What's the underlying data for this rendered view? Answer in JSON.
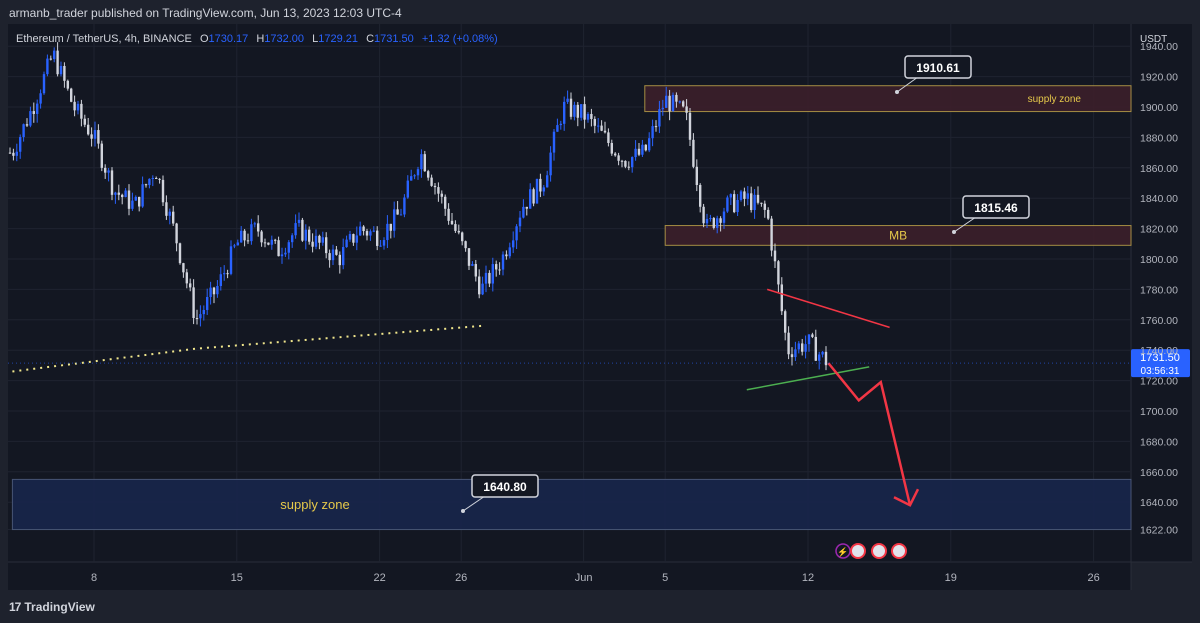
{
  "header": {
    "published_by": "armanb_trader published on TradingView.com, Jun 13, 2023 12:03 UTC-4"
  },
  "brand": {
    "logo": "17",
    "name": "TradingView"
  },
  "symbol_bar": {
    "symbol": "Ethereum / TetherUS, 4h, BINANCE",
    "o_label": "O",
    "o_value": "1730.17",
    "h_label": "H",
    "h_value": "1732.00",
    "l_label": "L",
    "l_value": "1729.21",
    "c_label": "C",
    "c_value": "1731.50",
    "change": "+1.32 (+0.08%)"
  },
  "colors": {
    "background": "#131722",
    "up_candle": "#2962ff",
    "down_candle": "#d1d4dc",
    "zone_fill": "#3c1f2a",
    "zone_border": "#b59a47",
    "demand_fill": "#18254a",
    "trend_yellow": "#f0e68c",
    "triangle_top": "#f23645",
    "triangle_bottom": "#4caf50",
    "arrow": "#f23645",
    "price_label_bg": "#2962ff"
  },
  "chart_data": {
    "type": "candlestick",
    "symbol": "ETHUSDT",
    "timeframe": "4h",
    "currency": "USDT",
    "y_range": [
      1610,
      1950
    ],
    "y_ticks": [
      1622,
      1640,
      1660,
      1680,
      1700,
      1720,
      1740,
      1760,
      1780,
      1800,
      1820,
      1840,
      1860,
      1880,
      1900,
      1920,
      1940
    ],
    "x_ticks": [
      {
        "label": "8",
        "date": "2023-05-08"
      },
      {
        "label": "15",
        "date": "2023-05-15"
      },
      {
        "label": "22",
        "date": "2023-05-22"
      },
      {
        "label": "26",
        "date": "2023-05-26"
      },
      {
        "label": "Jun",
        "date": "2023-06-01"
      },
      {
        "label": "5",
        "date": "2023-06-05"
      },
      {
        "label": "12",
        "date": "2023-06-12"
      },
      {
        "label": "19",
        "date": "2023-06-19"
      },
      {
        "label": "26",
        "date": "2023-06-26"
      }
    ],
    "x_range": [
      "2023-05-04",
      "2023-06-28"
    ],
    "close_path": [
      [
        "2023-05-04",
        1870
      ],
      [
        "2023-05-05",
        1900
      ],
      [
        "2023-05-06",
        1935
      ],
      [
        "2023-05-07",
        1900
      ],
      [
        "2023-05-08",
        1880
      ],
      [
        "2023-05-09",
        1845
      ],
      [
        "2023-05-10",
        1835
      ],
      [
        "2023-05-11",
        1860
      ],
      [
        "2023-05-12",
        1815
      ],
      [
        "2023-05-13",
        1760
      ],
      [
        "2023-05-14",
        1780
      ],
      [
        "2023-05-15",
        1810
      ],
      [
        "2023-05-16",
        1820
      ],
      [
        "2023-05-17",
        1805
      ],
      [
        "2023-05-18",
        1820
      ],
      [
        "2023-05-19",
        1810
      ],
      [
        "2023-05-20",
        1800
      ],
      [
        "2023-05-21",
        1820
      ],
      [
        "2023-05-22",
        1815
      ],
      [
        "2023-05-23",
        1830
      ],
      [
        "2023-05-24",
        1870
      ],
      [
        "2023-05-25",
        1840
      ],
      [
        "2023-05-26",
        1810
      ],
      [
        "2023-05-27",
        1780
      ],
      [
        "2023-05-28",
        1800
      ],
      [
        "2023-05-29",
        1835
      ],
      [
        "2023-05-30",
        1850
      ],
      [
        "2023-05-31",
        1900
      ],
      [
        "2023-06-01",
        1895
      ],
      [
        "2023-06-02",
        1880
      ],
      [
        "2023-06-03",
        1865
      ],
      [
        "2023-06-04",
        1870
      ],
      [
        "2023-06-05",
        1905
      ],
      [
        "2023-06-06",
        1895
      ],
      [
        "2023-06-07",
        1820
      ],
      [
        "2023-06-08",
        1835
      ],
      [
        "2023-06-09",
        1840
      ],
      [
        "2023-06-10",
        1830
      ],
      [
        "2023-06-11",
        1740
      ],
      [
        "2023-06-12",
        1745
      ],
      [
        "2023-06-13",
        1731.5
      ]
    ],
    "last_price": "1731.50",
    "countdown": "03:56:31",
    "levels": [
      {
        "label": "1910.61",
        "value": 1910.61
      },
      {
        "label": "1815.46",
        "value": 1815.46
      },
      {
        "label": "1640.80",
        "value": 1640.8
      }
    ],
    "zones": [
      {
        "label": "supply zone",
        "from": 1897,
        "to": 1914,
        "start": "2023-06-04"
      },
      {
        "label": "MB",
        "from": 1809,
        "to": 1822,
        "start": "2023-06-05"
      },
      {
        "label": "supply zone",
        "from": 1622,
        "to": 1655,
        "start": "2023-05-04"
      }
    ],
    "trendline_support": [
      [
        "2023-05-04",
        1726
      ],
      [
        "2023-05-13",
        1741
      ],
      [
        "2023-05-27",
        1756
      ]
    ],
    "triangle_upper": [
      [
        "2023-06-10",
        1780
      ],
      [
        "2023-06-16",
        1755
      ]
    ],
    "triangle_lower": [
      [
        "2023-06-09",
        1714
      ],
      [
        "2023-06-15",
        1729
      ]
    ],
    "projection_arrow": [
      [
        "2023-06-13",
        1731.5
      ],
      [
        "2023-06-14",
        1707
      ],
      [
        "2023-06-14",
        1719
      ],
      [
        "2023-06-17",
        1638
      ]
    ]
  }
}
